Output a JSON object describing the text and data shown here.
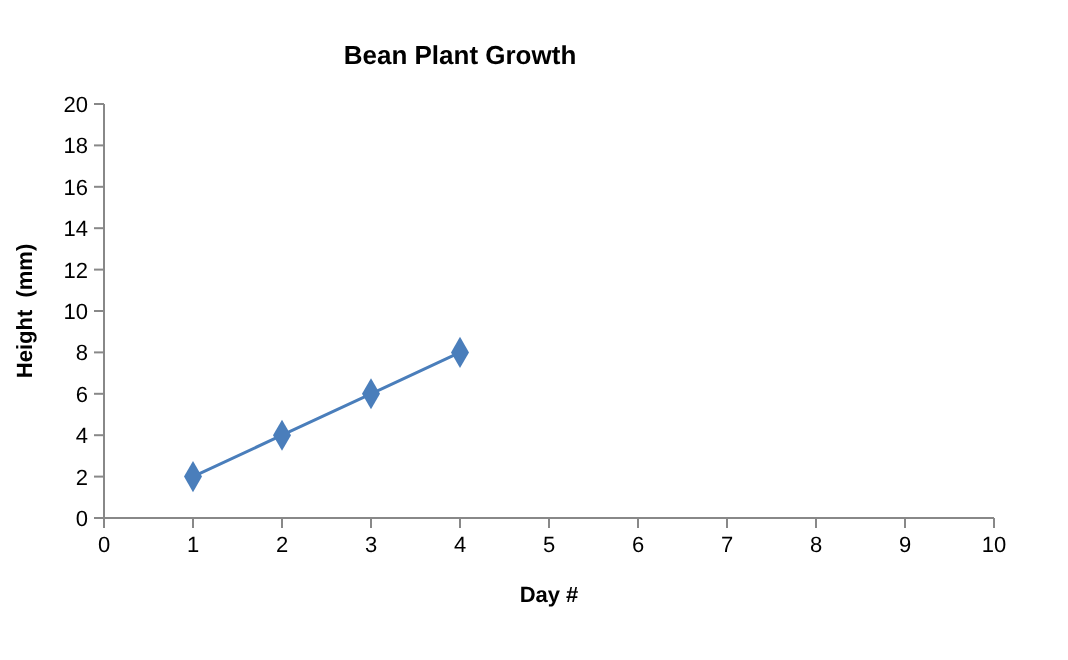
{
  "chart_data": {
    "type": "line",
    "title": "Bean Plant Growth",
    "xlabel": "Day #",
    "ylabel": "Height  (mm)",
    "x": [
      1,
      2,
      3,
      4
    ],
    "series": [
      {
        "color": "#4a7ebb",
        "values": [
          2,
          4,
          6,
          8
        ]
      }
    ],
    "xlim": [
      0,
      10
    ],
    "xticks": [
      0,
      1,
      2,
      3,
      4,
      5,
      6,
      7,
      8,
      9,
      10
    ],
    "ylim": [
      0,
      20
    ],
    "yticks": [
      0,
      2,
      4,
      6,
      8,
      10,
      12,
      14,
      16,
      18,
      20
    ],
    "grid": false,
    "marker": "diamond",
    "line_style": "solid"
  }
}
